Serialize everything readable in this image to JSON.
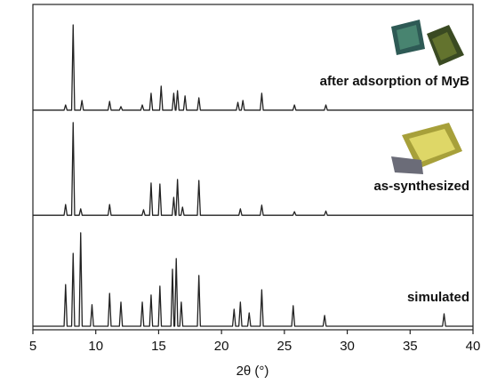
{
  "chart_data": {
    "type": "line",
    "x_label": "2θ (°)",
    "xlim": [
      5,
      40
    ],
    "xticks": [
      5,
      10,
      15,
      20,
      25,
      30,
      35,
      40
    ],
    "ylim": [
      0,
      100
    ],
    "series": [
      {
        "name": "simulated",
        "color": "#222222",
        "x": [
          5,
          7.48,
          7.6,
          7.72,
          8.08,
          8.2,
          8.32,
          8.68,
          8.8,
          8.92,
          9.58,
          9.7,
          9.82,
          10.98,
          11.1,
          11.22,
          11.88,
          12,
          12.12,
          13.58,
          13.7,
          13.82,
          14.28,
          14.4,
          14.52,
          14.98,
          15.1,
          15.22,
          15.98,
          16.1,
          16.22,
          16.28,
          16.4,
          16.52,
          16.68,
          16.8,
          16.92,
          18.08,
          18.2,
          18.32,
          20.88,
          21,
          21.12,
          21.38,
          21.5,
          21.62,
          22.08,
          22.2,
          22.32,
          23.08,
          23.2,
          23.32,
          25.58,
          25.7,
          25.82,
          28.08,
          28.2,
          28.32,
          37.58,
          37.7,
          37.82,
          40
        ],
        "values": [
          1.1,
          1.1,
          13.9,
          1.1,
          1.1,
          23.5,
          1.1,
          1.1,
          29.8,
          1.1,
          1.1,
          7.7,
          1.1,
          1.1,
          11.2,
          1.1,
          1.1,
          8.5,
          1.1,
          1.1,
          8.5,
          1.1,
          1.1,
          10.7,
          1.1,
          1.1,
          13.4,
          1.1,
          1.1,
          18.6,
          1.1,
          1.1,
          21.9,
          1.1,
          1.1,
          8.5,
          1.1,
          1.1,
          16.7,
          1.1,
          1.1,
          6.3,
          1.1,
          1.1,
          8.5,
          1.1,
          1.1,
          5.2,
          1.1,
          1.1,
          12.3,
          1.1,
          1.1,
          7.4,
          1.1,
          1.1,
          4.4,
          1.1,
          1.1,
          4.9,
          1.1,
          1.1
        ]
      },
      {
        "name": "as-synthesized",
        "color": "#222222",
        "x": [
          5,
          7.48,
          7.6,
          7.72,
          8.08,
          8.2,
          8.32,
          8.68,
          8.8,
          8.92,
          10.98,
          11.1,
          11.22,
          13.68,
          13.8,
          13.92,
          14.28,
          14.4,
          14.52,
          14.98,
          15.1,
          15.22,
          16.08,
          16.2,
          16.32,
          16.38,
          16.5,
          16.62,
          16.78,
          16.9,
          17.02,
          18.08,
          18.2,
          18.32,
          21.38,
          21.5,
          21.62,
          23.08,
          23.2,
          23.32,
          25.68,
          25.8,
          25.92,
          28.18,
          28.3,
          28.42,
          40
        ],
        "values": [
          35.2,
          35.2,
          38.5,
          35.2,
          35.2,
          63.7,
          35.2,
          35.2,
          37.2,
          35.2,
          35.2,
          38.5,
          35.2,
          35.2,
          36.9,
          35.2,
          35.2,
          45.1,
          35.2,
          35.2,
          44.8,
          35.2,
          35.2,
          40.7,
          35.2,
          35.2,
          46.2,
          35.2,
          35.2,
          37.7,
          35.2,
          35.2,
          45.9,
          35.2,
          35.2,
          37.2,
          35.2,
          35.2,
          38.3,
          35.2,
          35.2,
          36.3,
          35.2,
          35.2,
          36.5,
          35.2,
          35.2
        ]
      },
      {
        "name": "after adsorption of MyB",
        "color": "#222222",
        "x": [
          5,
          7.48,
          7.6,
          7.72,
          8.08,
          8.2,
          8.32,
          8.78,
          8.9,
          9.02,
          10.98,
          11.1,
          11.22,
          11.88,
          12,
          12.12,
          13.58,
          13.7,
          13.82,
          14.28,
          14.4,
          14.52,
          15.08,
          15.2,
          15.32,
          16.08,
          16.2,
          16.32,
          16.38,
          16.5,
          16.62,
          16.98,
          17.1,
          17.22,
          18.08,
          18.2,
          18.32,
          21.18,
          21.3,
          21.42,
          21.58,
          21.7,
          21.82,
          23.08,
          23.2,
          23.32,
          25.68,
          25.8,
          25.92,
          28.18,
          28.3,
          28.42,
          40
        ],
        "values": [
          67.5,
          67.5,
          69.1,
          67.5,
          67.5,
          93.7,
          67.5,
          67.5,
          70.5,
          67.5,
          67.5,
          70.2,
          67.5,
          67.5,
          68.6,
          67.5,
          67.5,
          69.1,
          67.5,
          67.5,
          72.7,
          67.5,
          67.5,
          74.9,
          67.5,
          67.5,
          72.7,
          67.5,
          67.5,
          73.5,
          67.5,
          67.5,
          71.9,
          67.5,
          67.5,
          71.3,
          67.5,
          67.5,
          69.9,
          67.5,
          67.5,
          70.5,
          67.5,
          67.5,
          72.7,
          67.5,
          67.5,
          69.1,
          67.5,
          67.5,
          69.1,
          67.5,
          67.5
        ]
      }
    ]
  }
}
